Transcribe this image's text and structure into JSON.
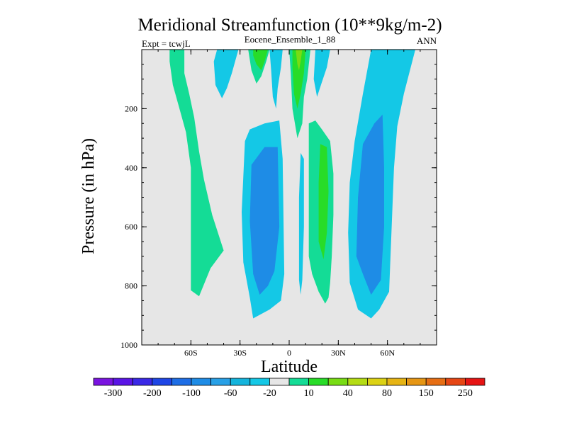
{
  "chart_data": {
    "type": "heatmap",
    "title": "Meridional Streamfunction (10**9kg/m-2)",
    "subtitle_center": "Eocene_Ensemble_1_88",
    "subtitle_left": "Expt = tcwjL",
    "subtitle_right": "ANN",
    "xlabel": "Latitude",
    "ylabel": "Pressure (in hPa)",
    "xlim": [
      -90,
      90
    ],
    "ylim": [
      1000,
      0
    ],
    "x_ticks": [
      {
        "value": -60,
        "label": "60S"
      },
      {
        "value": -30,
        "label": "30S"
      },
      {
        "value": 0,
        "label": "0"
      },
      {
        "value": 30,
        "label": "30N"
      },
      {
        "value": 60,
        "label": "60N"
      }
    ],
    "y_ticks": [
      {
        "value": 200,
        "label": "200"
      },
      {
        "value": 400,
        "label": "400"
      },
      {
        "value": 600,
        "label": "600"
      },
      {
        "value": 800,
        "label": "800"
      },
      {
        "value": 1000,
        "label": "1000"
      }
    ],
    "background_color": "#e6e6e6",
    "colorbar": {
      "colors": [
        "#7a14e0",
        "#5a14e6",
        "#3a28e6",
        "#1e46e6",
        "#1e6ee6",
        "#1e8ce6",
        "#28a0e6",
        "#14b4dc",
        "#14c8e6",
        "#e6e6e6",
        "#14dc96",
        "#28dc28",
        "#78dc14",
        "#b4dc14",
        "#dcd214",
        "#e6b414",
        "#e69614",
        "#e66e14",
        "#e64614",
        "#e61414"
      ],
      "labels": [
        "-300",
        "-200",
        "-100",
        "-60",
        "-20",
        "10",
        "40",
        "80",
        "150",
        "250"
      ]
    },
    "regions": [
      {
        "level": "10",
        "color": "#14dc96",
        "points": [
          [
            -73,
            0
          ],
          [
            -64,
            0
          ],
          [
            -64,
            80
          ],
          [
            -61,
            150
          ],
          [
            -58,
            230
          ],
          [
            -55,
            345
          ],
          [
            -52,
            440
          ],
          [
            -47,
            560
          ],
          [
            -40,
            680
          ],
          [
            -48,
            740
          ],
          [
            -55,
            835
          ],
          [
            -60,
            815
          ],
          [
            -60,
            400
          ],
          [
            -63,
            280
          ],
          [
            -67,
            200
          ],
          [
            -71,
            120
          ],
          [
            -73,
            40
          ]
        ]
      },
      {
        "level": "-20",
        "color": "#14c8e6",
        "points": [
          [
            -44,
            0
          ],
          [
            -31,
            0
          ],
          [
            -35,
            80
          ],
          [
            -38,
            130
          ],
          [
            -41,
            165
          ],
          [
            -45,
            120
          ],
          [
            -46,
            40
          ]
        ]
      },
      {
        "level": "10",
        "color": "#14dc96",
        "points": [
          [
            -25,
            0
          ],
          [
            -12,
            0
          ],
          [
            -14,
            40
          ],
          [
            -17,
            90
          ],
          [
            -20,
            115
          ],
          [
            -23,
            70
          ]
        ]
      },
      {
        "level": "40",
        "color": "#28dc28",
        "points": [
          [
            -22,
            0
          ],
          [
            -13,
            0
          ],
          [
            -15,
            40
          ],
          [
            -17,
            70
          ],
          [
            -20,
            50
          ],
          [
            -22,
            20
          ]
        ]
      },
      {
        "level": "-20",
        "color": "#14c8e6",
        "points": [
          [
            -27,
            310
          ],
          [
            -24,
            270
          ],
          [
            -15,
            250
          ],
          [
            -6,
            240
          ],
          [
            -4,
            370
          ],
          [
            -3,
            760
          ],
          [
            -5,
            850
          ],
          [
            -12,
            880
          ],
          [
            -22,
            910
          ],
          [
            -24,
            840
          ],
          [
            -28,
            720
          ],
          [
            -29,
            550
          ]
        ]
      },
      {
        "level": "-60",
        "color": "#1e8ce6",
        "points": [
          [
            -23,
            390
          ],
          [
            -15,
            330
          ],
          [
            -7,
            330
          ],
          [
            -6,
            600
          ],
          [
            -9,
            750
          ],
          [
            -13,
            800
          ],
          [
            -18,
            830
          ],
          [
            -22,
            760
          ],
          [
            -24,
            580
          ]
        ]
      },
      {
        "level": "-20",
        "color": "#14c8e6",
        "points": [
          [
            -12,
            0
          ],
          [
            -4,
            0
          ],
          [
            -5,
            60
          ],
          [
            -7,
            130
          ],
          [
            -8,
            200
          ],
          [
            -10,
            160
          ],
          [
            -11,
            70
          ]
        ]
      },
      {
        "level": "10",
        "color": "#14dc96",
        "points": [
          [
            0,
            0
          ],
          [
            13,
            0
          ],
          [
            11,
            100
          ],
          [
            9,
            160
          ],
          [
            8,
            250
          ],
          [
            5,
            300
          ],
          [
            2,
            200
          ],
          [
            1,
            80
          ]
        ]
      },
      {
        "level": "40",
        "color": "#28dc28",
        "points": [
          [
            2,
            0
          ],
          [
            10,
            0
          ],
          [
            9,
            80
          ],
          [
            7,
            150
          ],
          [
            5,
            200
          ],
          [
            3,
            150
          ],
          [
            2,
            60
          ]
        ]
      },
      {
        "level": "80",
        "color": "#78dc14",
        "points": [
          [
            4,
            0
          ],
          [
            8,
            0
          ],
          [
            7,
            40
          ],
          [
            6,
            70
          ],
          [
            5,
            50
          ]
        ]
      },
      {
        "level": "-20",
        "color": "#14c8e6",
        "points": [
          [
            16,
            0
          ],
          [
            25,
            0
          ],
          [
            23,
            60
          ],
          [
            20,
            110
          ],
          [
            17,
            160
          ],
          [
            15,
            100
          ]
        ]
      },
      {
        "level": "-20",
        "color": "#14c8e6",
        "points": [
          [
            7,
            350
          ],
          [
            9,
            370
          ],
          [
            9,
            600
          ],
          [
            8,
            780
          ],
          [
            7,
            830
          ],
          [
            6,
            780
          ],
          [
            6,
            500
          ]
        ]
      },
      {
        "level": "10",
        "color": "#14dc96",
        "points": [
          [
            12,
            250
          ],
          [
            16,
            240
          ],
          [
            20,
            270
          ],
          [
            25,
            310
          ],
          [
            27,
            420
          ],
          [
            27,
            560
          ],
          [
            26,
            700
          ],
          [
            25,
            790
          ],
          [
            24,
            840
          ],
          [
            22,
            860
          ],
          [
            18,
            820
          ],
          [
            14,
            760
          ],
          [
            12,
            700
          ],
          [
            12,
            450
          ]
        ]
      },
      {
        "level": "40",
        "color": "#28dc28",
        "points": [
          [
            19,
            320
          ],
          [
            23,
            330
          ],
          [
            24,
            480
          ],
          [
            23,
            620
          ],
          [
            21,
            710
          ],
          [
            18,
            650
          ],
          [
            18,
            450
          ]
        ]
      },
      {
        "level": "-20",
        "color": "#14c8e6",
        "points": [
          [
            50,
            0
          ],
          [
            77,
            0
          ],
          [
            70,
            150
          ],
          [
            66,
            260
          ],
          [
            64,
            400
          ],
          [
            62,
            680
          ],
          [
            61,
            820
          ],
          [
            55,
            880
          ],
          [
            50,
            910
          ],
          [
            42,
            880
          ],
          [
            37,
            790
          ],
          [
            36,
            620
          ],
          [
            37,
            450
          ],
          [
            40,
            310
          ],
          [
            45,
            150
          ]
        ]
      },
      {
        "level": "-60",
        "color": "#1e8ce6",
        "points": [
          [
            45,
            320
          ],
          [
            52,
            250
          ],
          [
            57,
            220
          ],
          [
            58,
            400
          ],
          [
            58,
            600
          ],
          [
            56,
            780
          ],
          [
            50,
            830
          ],
          [
            45,
            760
          ],
          [
            41,
            700
          ],
          [
            42,
            500
          ]
        ]
      }
    ]
  }
}
